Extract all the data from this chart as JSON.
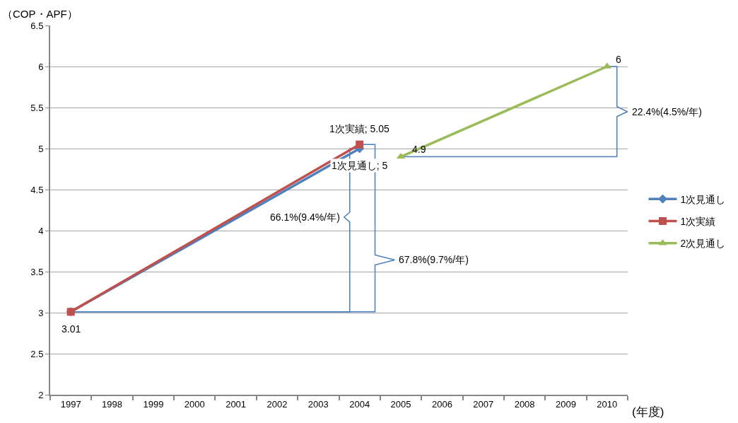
{
  "chart_data": {
    "type": "line",
    "ylabel": "（COP・APF）",
    "xlabel": "(年度)",
    "xlim": [
      1996.5,
      2010.5
    ],
    "xticks": [
      1997,
      1998,
      1999,
      2000,
      2001,
      2002,
      2003,
      2004,
      2005,
      2006,
      2007,
      2008,
      2009,
      2010
    ],
    "ylim": [
      2,
      6.5
    ],
    "yticks": [
      2,
      2.5,
      3,
      3.5,
      4,
      4.5,
      5,
      5.5,
      6,
      6.5
    ],
    "grid": "y",
    "legend": "right",
    "line_style": "solid",
    "series": [
      {
        "name": "1次見通し",
        "color": "#4f81bd",
        "marker": "diamond",
        "x": [
          1997,
          2004
        ],
        "values": [
          3.01,
          5
        ],
        "value_labels": [
          null,
          "1次見通し; 5"
        ]
      },
      {
        "name": "1次実績",
        "color": "#c0504d",
        "marker": "square",
        "x": [
          1997,
          2004
        ],
        "values": [
          3.01,
          5.05
        ],
        "value_labels": [
          "3.01",
          "1次実績; 5.05"
        ]
      },
      {
        "name": "2次見通し",
        "color": "#9bbb59",
        "marker": "triangle",
        "x": [
          2005,
          2010
        ],
        "values": [
          4.9,
          6
        ],
        "value_labels": [
          "4.9",
          "6"
        ]
      }
    ],
    "annotations": [
      "66.1%(9.4%/年)",
      "67.8%(9.7%/年)",
      "22.4%(4.5%/年)"
    ]
  }
}
